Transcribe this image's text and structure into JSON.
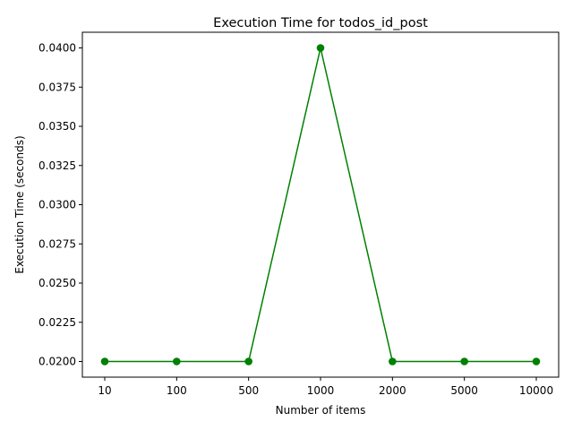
{
  "chart_data": {
    "type": "line",
    "title": "Execution Time for todos_id_post",
    "xlabel": "Number of items",
    "ylabel": "Execution Time (seconds)",
    "categories": [
      "10",
      "100",
      "500",
      "1000",
      "2000",
      "5000",
      "10000"
    ],
    "series": [
      {
        "name": "todos_id_post",
        "values": [
          0.02,
          0.02,
          0.02,
          0.04,
          0.02,
          0.02,
          0.02
        ],
        "color": "#008000",
        "marker": "circle"
      }
    ],
    "ylim": [
      0.019,
      0.041
    ],
    "yticks": [
      0.02,
      0.0225,
      0.025,
      0.0275,
      0.03,
      0.0325,
      0.035,
      0.0375,
      0.04
    ],
    "ytick_labels": [
      "0.0200",
      "0.0225",
      "0.0250",
      "0.0275",
      "0.0300",
      "0.0325",
      "0.0350",
      "0.0375",
      "0.0400"
    ],
    "grid": false,
    "legend": "none"
  }
}
